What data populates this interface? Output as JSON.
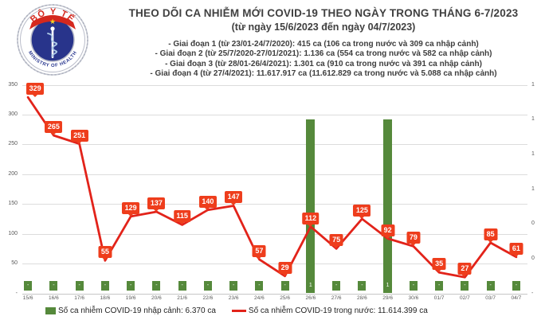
{
  "logo": {
    "top_text": "BỘ Y TẾ",
    "bottom_text": "MINISTRY OF HEALTH"
  },
  "header": {
    "title": "THEO DÕI CA NHIỄM MỚI COVID-19 THEO NGÀY TRONG THÁNG 6-7/2023",
    "subtitle": "(từ ngày 15/6/2023 đến ngày 04/7/2023)",
    "phases": [
      "- Giai đoạn 1 (từ 23/01-24/7/2020): 415 ca (106 ca trong nước và 309 ca nhập cảnh)",
      "- Giai đoạn 2 (từ 25/7/2020-27/01/2021): 1.136 ca (554 ca trong nước và 582 ca nhập cảnh)",
      "- Giai đoạn 3 (từ 28/01-26/4/2021): 1.301 ca (910 ca trong nước và 391 ca nhập cảnh)",
      "- Giai đoạn 4 (từ 27/4/2021): 11.617.917 ca (11.612.829 ca trong nước và 5.088 ca nhập cảnh)"
    ]
  },
  "chart_data": {
    "type": "line+bar",
    "categories": [
      "15/6",
      "16/6",
      "17/6",
      "18/6",
      "19/6",
      "20/6",
      "21/6",
      "22/6",
      "23/6",
      "24/6",
      "25/6",
      "26/6",
      "27/6",
      "28/6",
      "29/6",
      "30/6",
      "01/7",
      "02/7",
      "03/7",
      "04/7"
    ],
    "series": [
      {
        "name": "Số ca nhiễm COVID-19 nhập cảnh",
        "type": "bar",
        "axis": "right",
        "color": "#55893b",
        "values": [
          0,
          0,
          0,
          0,
          0,
          0,
          0,
          0,
          0,
          0,
          0,
          1,
          0,
          0,
          1,
          0,
          0,
          0,
          0,
          0
        ],
        "labels": [
          "-",
          "-",
          "-",
          "-",
          "-",
          "-",
          "-",
          "-",
          "-",
          "-",
          "-",
          "1",
          "-",
          "-",
          "1",
          "-",
          "-",
          "-",
          "-",
          "-"
        ]
      },
      {
        "name": "Số ca nhiễm COVID-19 trong nước",
        "type": "line",
        "axis": "left",
        "color": "#e2231a",
        "label_bg": "#ee3d1c",
        "values": [
          329,
          265,
          251,
          55,
          129,
          137,
          115,
          140,
          147,
          57,
          29,
          112,
          75,
          125,
          92,
          79,
          35,
          27,
          85,
          61
        ]
      }
    ],
    "left_axis": {
      "min": 0,
      "max": 350,
      "ticks": [
        "-",
        "50",
        "100",
        "150",
        "200",
        "250",
        "300",
        "350"
      ]
    },
    "right_axis": {
      "min": 0,
      "max": 1.2,
      "ticks": [
        "-",
        "0",
        "0",
        "1",
        "1",
        "1",
        "1"
      ]
    },
    "grid": true,
    "grid_color": "#dcdcdc",
    "axis_line_color": "#c6c6c6"
  },
  "legend": {
    "items": [
      {
        "type": "bar",
        "label": "Số ca nhiễm COVID-19 nhập cảnh: 6.370 ca"
      },
      {
        "type": "line",
        "label": "Số ca nhiễm COVID-19 trong nước: 11.614.399 ca"
      }
    ]
  }
}
